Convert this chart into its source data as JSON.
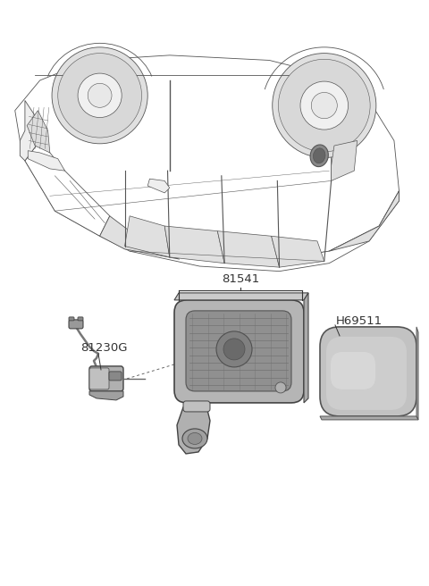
{
  "fig_width": 4.8,
  "fig_height": 6.56,
  "dpi": 100,
  "background_color": "#ffffff",
  "label_81541": "81541",
  "label_81230G": "81230G",
  "label_H69511": "H69511",
  "car_edge": "#555555",
  "part_edge": "#555555",
  "part_fill_light": "#c8c8c8",
  "part_fill_mid": "#a8a8a8",
  "part_fill_dark": "#888888",
  "part_fill_darker": "#686868"
}
